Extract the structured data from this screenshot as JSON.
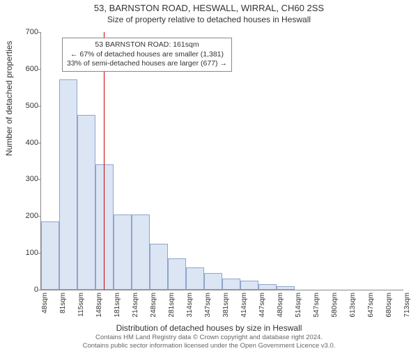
{
  "title_main": "53, BARNSTON ROAD, HESWALL, WIRRAL, CH60 2SS",
  "title_sub": "Size of property relative to detached houses in Heswall",
  "ylabel": "Number of detached properties",
  "xlabel": "Distribution of detached houses by size in Heswall",
  "footer_line1": "Contains HM Land Registry data © Crown copyright and database right 2024.",
  "footer_line2": "Contains public sector information licensed under the Open Government Licence v3.0.",
  "chart": {
    "type": "histogram",
    "ylim": [
      0,
      700
    ],
    "ytick_step": 100,
    "yticks": [
      0,
      100,
      200,
      300,
      400,
      500,
      600,
      700
    ],
    "xticks": [
      "48sqm",
      "81sqm",
      "115sqm",
      "148sqm",
      "181sqm",
      "214sqm",
      "248sqm",
      "281sqm",
      "314sqm",
      "347sqm",
      "381sqm",
      "414sqm",
      "447sqm",
      "480sqm",
      "514sqm",
      "547sqm",
      "580sqm",
      "613sqm",
      "647sqm",
      "680sqm",
      "713sqm"
    ],
    "bar_values": [
      185,
      572,
      475,
      340,
      205,
      205,
      125,
      85,
      60,
      45,
      30,
      25,
      15,
      10,
      0,
      0,
      0,
      0,
      0,
      0
    ],
    "bar_fill": "#dbe5f4",
    "bar_stroke": "#8fa5c9",
    "reference_line": {
      "position_index": 3.45,
      "color": "#cc0000"
    },
    "background_color": "#ffffff",
    "axis_color": "#888888"
  },
  "annotation": {
    "line1": "53 BARNSTON ROAD: 161sqm",
    "line2": "← 67% of detached houses are smaller (1,381)",
    "line3": "33% of semi-detached houses are larger (677) →"
  }
}
